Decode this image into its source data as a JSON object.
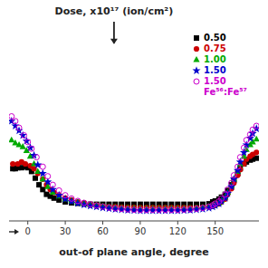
{
  "chart_data": {
    "type": "scatter",
    "title": "Dose, x10¹⁷ (ion/cm²)",
    "x_label": "out-of plane angle, degree",
    "xlim": [
      -15,
      185
    ],
    "xticks": [
      0,
      30,
      60,
      90,
      120,
      150
    ],
    "ylim": [
      0,
      2
    ],
    "tick_labels": "x",
    "legend": "upper right",
    "series": [
      {
        "name": "0.50",
        "color": "black",
        "marker": "square",
        "x": [
          -12,
          -10,
          -8,
          -5,
          -2,
          0,
          3,
          6,
          9,
          12,
          15,
          18,
          21,
          25,
          30,
          35,
          40,
          45,
          50,
          55,
          60,
          65,
          70,
          75,
          80,
          85,
          90,
          95,
          100,
          105,
          110,
          115,
          120,
          125,
          130,
          135,
          140,
          145,
          148,
          150,
          153,
          155,
          158,
          160,
          163,
          165,
          168,
          170,
          173,
          175,
          178,
          180,
          183
        ],
        "values": [
          0.55,
          0.55,
          0.56,
          0.56,
          0.57,
          0.56,
          0.52,
          0.45,
          0.38,
          0.33,
          0.28,
          0.26,
          0.24,
          0.22,
          0.2,
          0.19,
          0.185,
          0.18,
          0.175,
          0.175,
          0.175,
          0.175,
          0.175,
          0.175,
          0.175,
          0.175,
          0.175,
          0.175,
          0.175,
          0.175,
          0.175,
          0.175,
          0.175,
          0.175,
          0.175,
          0.175,
          0.175,
          0.18,
          0.2,
          0.21,
          0.23,
          0.25,
          0.28,
          0.32,
          0.38,
          0.43,
          0.5,
          0.55,
          0.6,
          0.62,
          0.64,
          0.65,
          0.66
        ]
      },
      {
        "name": "0.75",
        "color": "#cc0000",
        "marker": "circle",
        "x": [
          -12,
          -8,
          -5,
          -2,
          2,
          5,
          8,
          12,
          15,
          18,
          21,
          25,
          30,
          35,
          40,
          45,
          50,
          55,
          60,
          65,
          70,
          75,
          80,
          85,
          90,
          95,
          100,
          105,
          110,
          115,
          120,
          125,
          130,
          135,
          140,
          145,
          148,
          150,
          153,
          155,
          158,
          160,
          163,
          165,
          168,
          170,
          173,
          175,
          178,
          180,
          183
        ],
        "values": [
          0.6,
          0.6,
          0.62,
          0.6,
          0.58,
          0.55,
          0.5,
          0.44,
          0.38,
          0.33,
          0.3,
          0.27,
          0.24,
          0.22,
          0.2,
          0.19,
          0.175,
          0.165,
          0.155,
          0.15,
          0.148,
          0.145,
          0.143,
          0.142,
          0.14,
          0.14,
          0.14,
          0.14,
          0.14,
          0.14,
          0.14,
          0.14,
          0.14,
          0.14,
          0.143,
          0.148,
          0.155,
          0.165,
          0.18,
          0.2,
          0.23,
          0.28,
          0.34,
          0.4,
          0.48,
          0.54,
          0.6,
          0.65,
          0.68,
          0.7,
          0.72
        ]
      },
      {
        "name": "1.00",
        "color": "#00aa00",
        "marker": "triangle",
        "x": [
          -13,
          -10,
          -7,
          -4,
          -1,
          2,
          5,
          8,
          12,
          16,
          20,
          25,
          30,
          35,
          40,
          45,
          50,
          55,
          60,
          65,
          70,
          75,
          80,
          85,
          90,
          95,
          100,
          105,
          110,
          115,
          120,
          125,
          130,
          135,
          140,
          145,
          148,
          150,
          153,
          155,
          158,
          160,
          163,
          165,
          168,
          170,
          173,
          175,
          178,
          180,
          183
        ],
        "values": [
          0.85,
          0.82,
          0.8,
          0.78,
          0.74,
          0.68,
          0.6,
          0.52,
          0.44,
          0.36,
          0.3,
          0.26,
          0.23,
          0.21,
          0.195,
          0.185,
          0.175,
          0.165,
          0.155,
          0.148,
          0.143,
          0.138,
          0.135,
          0.133,
          0.13,
          0.13,
          0.13,
          0.13,
          0.13,
          0.13,
          0.13,
          0.13,
          0.133,
          0.137,
          0.143,
          0.15,
          0.162,
          0.175,
          0.19,
          0.215,
          0.25,
          0.3,
          0.37,
          0.44,
          0.52,
          0.6,
          0.68,
          0.75,
          0.8,
          0.83,
          0.86
        ]
      },
      {
        "name": "1.50",
        "color": "#0000cc",
        "marker": "star",
        "x": [
          -13,
          -10,
          -7,
          -4,
          -1,
          2,
          5,
          8,
          12,
          16,
          20,
          25,
          30,
          35,
          40,
          45,
          50,
          55,
          60,
          65,
          70,
          75,
          80,
          85,
          90,
          95,
          100,
          105,
          110,
          115,
          120,
          125,
          130,
          135,
          140,
          145,
          148,
          150,
          153,
          155,
          158,
          160,
          163,
          165,
          168,
          170,
          173,
          175,
          178,
          180,
          183
        ],
        "values": [
          1.05,
          1.0,
          0.95,
          0.9,
          0.84,
          0.77,
          0.69,
          0.59,
          0.5,
          0.41,
          0.33,
          0.27,
          0.23,
          0.205,
          0.185,
          0.17,
          0.158,
          0.148,
          0.138,
          0.13,
          0.123,
          0.118,
          0.113,
          0.11,
          0.108,
          0.108,
          0.108,
          0.108,
          0.108,
          0.108,
          0.108,
          0.11,
          0.113,
          0.118,
          0.125,
          0.135,
          0.148,
          0.162,
          0.18,
          0.205,
          0.24,
          0.29,
          0.36,
          0.44,
          0.53,
          0.62,
          0.72,
          0.8,
          0.87,
          0.92,
          0.97
        ]
      },
      {
        "name": "1.50",
        "color": "#cc00cc",
        "marker": "circle-open",
        "x": [
          -13,
          -10,
          -7,
          -3,
          0,
          3,
          7,
          12,
          16,
          20,
          25,
          30,
          35,
          40,
          45,
          50,
          55,
          60,
          65,
          70,
          75,
          80,
          85,
          90,
          95,
          100,
          105,
          110,
          115,
          120,
          125,
          130,
          135,
          140,
          145,
          148,
          150,
          153,
          155,
          158,
          160,
          163,
          165,
          168,
          170,
          173,
          175,
          178,
          180,
          183
        ],
        "values": [
          1.1,
          1.05,
          0.98,
          0.9,
          0.83,
          0.76,
          0.67,
          0.57,
          0.47,
          0.38,
          0.32,
          0.27,
          0.235,
          0.21,
          0.19,
          0.175,
          0.162,
          0.15,
          0.14,
          0.132,
          0.126,
          0.121,
          0.117,
          0.115,
          0.115,
          0.115,
          0.115,
          0.115,
          0.115,
          0.115,
          0.118,
          0.122,
          0.128,
          0.137,
          0.15,
          0.165,
          0.182,
          0.205,
          0.235,
          0.278,
          0.33,
          0.4,
          0.48,
          0.57,
          0.67,
          0.77,
          0.85,
          0.91,
          0.96,
          1.0
        ]
      }
    ],
    "annotations": [
      {
        "text": "Fe⁵⁶:Fe⁵⁷",
        "color": "#cc00cc"
      }
    ]
  }
}
